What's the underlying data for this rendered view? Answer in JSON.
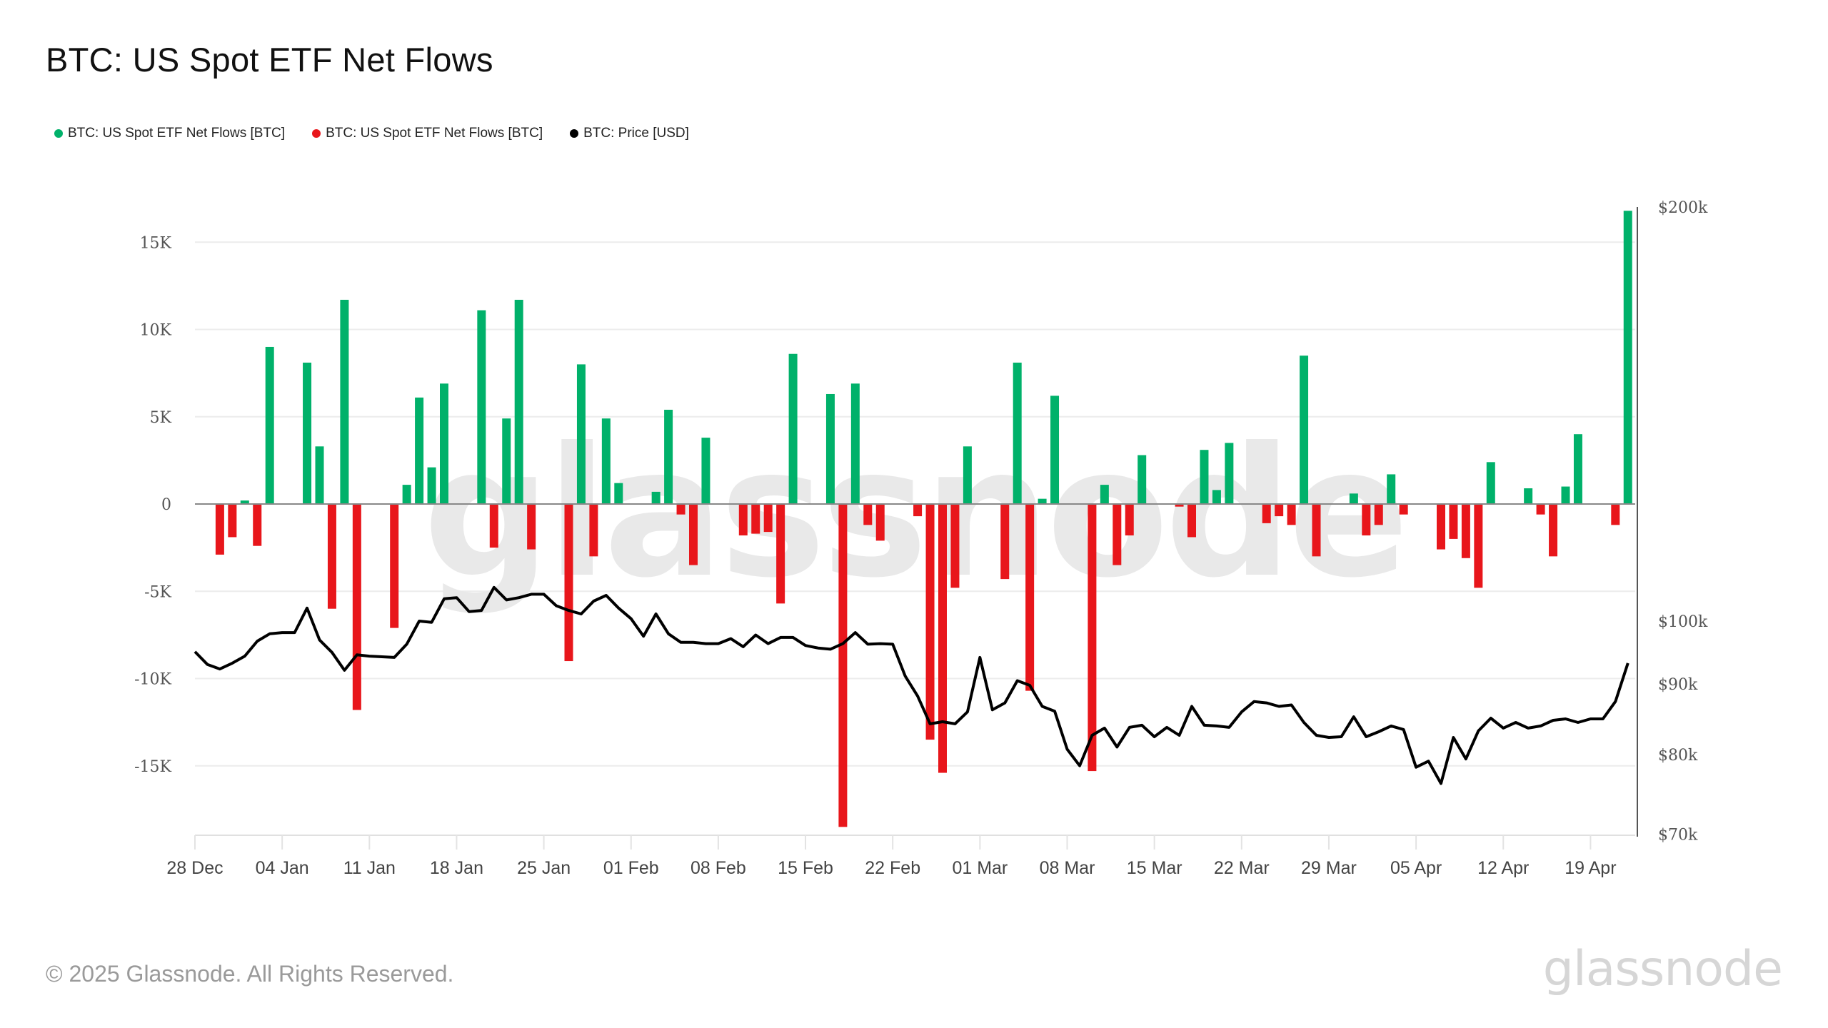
{
  "title": "BTC: US Spot ETF Net Flows",
  "legend": [
    {
      "label": "BTC: US Spot ETF Net Flows [BTC]",
      "color": "#00b16a"
    },
    {
      "label": "BTC: US Spot ETF Net Flows [BTC]",
      "color": "#e8161b"
    },
    {
      "label": "BTC: Price [USD]",
      "color": "#000000"
    }
  ],
  "footer": {
    "copyright": "© 2025 Glassnode. All Rights Reserved.",
    "logo": "glassnode",
    "watermark": "glassnode"
  },
  "chart_data": {
    "type": "bar",
    "title": "BTC: US Spot ETF Net Flows",
    "x_start_date": "2024-12-28",
    "x_days": 116,
    "xtick_labels": [
      "28 Dec",
      "04 Jan",
      "11 Jan",
      "18 Jan",
      "25 Jan",
      "01 Feb",
      "08 Feb",
      "15 Feb",
      "22 Feb",
      "01 Mar",
      "08 Mar",
      "15 Mar",
      "22 Mar",
      "29 Mar",
      "05 Apr",
      "12 Apr",
      "19 Apr"
    ],
    "xtick_day_offsets": [
      0,
      7,
      14,
      21,
      28,
      35,
      42,
      49,
      56,
      63,
      70,
      77,
      84,
      91,
      98,
      105,
      112
    ],
    "left_axis": {
      "ylim": [
        -19000,
        18000
      ],
      "ticks": [
        15000,
        10000,
        5000,
        0,
        -5000,
        -10000,
        -15000
      ],
      "tick_labels": [
        "15K",
        "10K",
        "5K",
        "0",
        "-5K",
        "-10K",
        "-15K"
      ],
      "unit": "BTC"
    },
    "right_axis": {
      "scale": "log",
      "ylim": [
        70000,
        200000
      ],
      "ticks": [
        200000,
        100000,
        90000,
        80000,
        70000
      ],
      "tick_labels": [
        "$200k",
        "$100k",
        "$90k",
        "$80k",
        "$70k"
      ],
      "unit": "USD"
    },
    "colors": {
      "inflow": "#00b16a",
      "outflow": "#e8161b",
      "price": "#000000",
      "grid": "#ececec",
      "zero": "#888888"
    },
    "flows": {
      "name": "BTC: US Spot ETF Net Flows [BTC]",
      "day_offsets": [
        2,
        3,
        4,
        5,
        6,
        9,
        10,
        11,
        12,
        13,
        16,
        17,
        18,
        19,
        20,
        23,
        24,
        25,
        26,
        27,
        30,
        31,
        32,
        33,
        34,
        37,
        38,
        39,
        40,
        41,
        44,
        45,
        46,
        47,
        48,
        51,
        52,
        53,
        54,
        55,
        58,
        59,
        60,
        61,
        62,
        65,
        66,
        67,
        68,
        69,
        72,
        73,
        74,
        75,
        76,
        79,
        80,
        81,
        82,
        83,
        86,
        87,
        88,
        89,
        90,
        93,
        94,
        95,
        96,
        97,
        100,
        101,
        102,
        103,
        104,
        107,
        108,
        109,
        110,
        111,
        114,
        115
      ],
      "values": [
        -2900,
        -1900,
        200,
        -2400,
        9000,
        8100,
        3300,
        -6000,
        11700,
        -11800,
        -7100,
        1100,
        6100,
        2100,
        6900,
        11100,
        -2500,
        4900,
        11700,
        -2600,
        -9000,
        8000,
        -3000,
        4900,
        1200,
        700,
        5400,
        -600,
        -3500,
        3800,
        -1800,
        -1700,
        -1600,
        -5700,
        8600,
        6300,
        -18500,
        6900,
        -1200,
        -2100,
        -700,
        -13500,
        -15400,
        -4800,
        3300,
        -4300,
        8100,
        -10700,
        300,
        6200,
        -15300,
        1100,
        -3500,
        -1800,
        2800,
        -150,
        -1900,
        3100,
        800,
        3500,
        -1100,
        -700,
        -1200,
        8500,
        -3000,
        600,
        -1800,
        -1200,
        1700,
        -600,
        -2600,
        -2000,
        -3100,
        -4800,
        2400,
        900,
        -600,
        -3000,
        1000,
        4000,
        -1200,
        16800
      ]
    },
    "price": {
      "name": "BTC: Price [USD]",
      "values": [
        95000,
        93000,
        92300,
        93200,
        94300,
        96700,
        97900,
        98100,
        98100,
        102200,
        96900,
        94900,
        92100,
        94500,
        94300,
        94200,
        94100,
        96200,
        100000,
        99800,
        103800,
        104000,
        101600,
        101800,
        105800,
        103600,
        104000,
        104600,
        104600,
        102600,
        101800,
        101200,
        103400,
        104400,
        102200,
        100400,
        97500,
        101200,
        97900,
        96500,
        96500,
        96300,
        96300,
        97100,
        95800,
        97700,
        96300,
        97300,
        97300,
        96000,
        95600,
        95400,
        96300,
        98100,
        96200,
        96300,
        96200,
        91200,
        88200,
        84200,
        84500,
        84200,
        85900,
        94100,
        86200,
        87200,
        90500,
        89800,
        86700,
        86000,
        80700,
        78500,
        82600,
        83600,
        81000,
        83700,
        84000,
        82400,
        83700,
        82600,
        86700,
        84000,
        83900,
        83700,
        85900,
        87400,
        87200,
        86700,
        86900,
        84400,
        82600,
        82300,
        82400,
        85200,
        82400,
        83100,
        83900,
        83400,
        78300,
        79100,
        76200,
        82300,
        79400,
        83200,
        85000,
        83600,
        84400,
        83600,
        83900,
        84700,
        84900,
        84400,
        84900,
        84900,
        87400,
        93200
      ]
    }
  }
}
